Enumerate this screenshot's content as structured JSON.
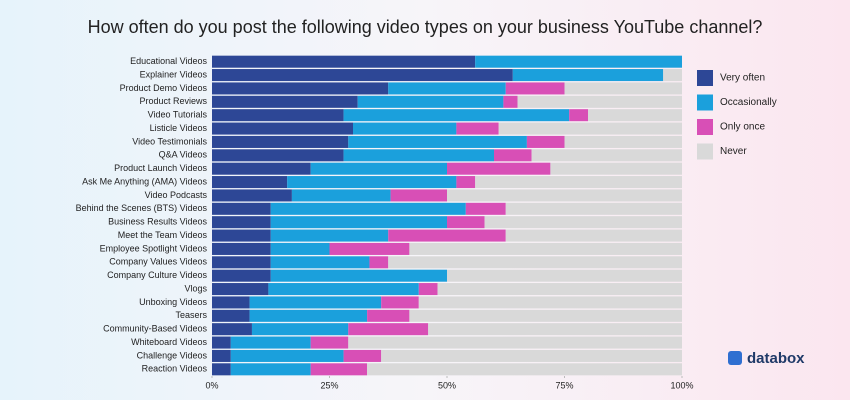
{
  "chart_data": {
    "type": "stacked-bar-horizontal",
    "title": "How often do you post the following video types on your business YouTube channel?",
    "brand": "databox",
    "categories": [
      "Educational Videos",
      "Explainer Videos",
      "Product Demo Videos",
      "Product Reviews",
      "Video Tutorials",
      "Listicle Videos",
      "Video Testimonials",
      "Q&A Videos",
      "Product Launch Videos",
      "Ask Me Anything (AMA) Videos",
      "Video Podcasts",
      "Behind the Scenes (BTS) Videos",
      "Business Results Videos",
      "Meet the Team Videos",
      "Employee Spotlight Videos",
      "Company Values Videos",
      "Company Culture Videos",
      "Vlogs",
      "Unboxing Videos",
      "Teasers",
      "Community-Based Videos",
      "Whiteboard Videos",
      "Challenge Videos",
      "Reaction Videos"
    ],
    "series": [
      {
        "name": "Very often",
        "color": "#2d4796",
        "values": [
          56,
          64,
          37.5,
          31,
          28,
          30,
          29,
          28,
          21,
          16,
          17,
          12.5,
          12.5,
          12.5,
          12.5,
          12.5,
          12.5,
          12,
          8,
          8,
          8.5,
          4,
          4,
          4
        ]
      },
      {
        "name": "Occasionally",
        "color": "#1ba0dc",
        "values": [
          44,
          32,
          25,
          31,
          48,
          22,
          38,
          32,
          29,
          36,
          21,
          41.5,
          37.5,
          25,
          12.5,
          21,
          37.5,
          32,
          28,
          25,
          20.5,
          17,
          24,
          17
        ]
      },
      {
        "name": "Only once",
        "color": "#d84fb6",
        "values": [
          0,
          0,
          12.5,
          3,
          4,
          9,
          8,
          8,
          22,
          4,
          12,
          8.5,
          8,
          25,
          17,
          4,
          0,
          4,
          8,
          9,
          17,
          8,
          8,
          12
        ]
      },
      {
        "name": "Never",
        "color": "#d9d9d9",
        "values": [
          0,
          4,
          25,
          35,
          20,
          39,
          25,
          32,
          28,
          44,
          50,
          37.5,
          42,
          37.5,
          58,
          62.5,
          50,
          52,
          56,
          58,
          54,
          71,
          64,
          67
        ]
      }
    ],
    "xlim": [
      0,
      100
    ],
    "xticks": [
      {
        "value": 0,
        "label": "0%"
      },
      {
        "value": 25,
        "label": "25%"
      },
      {
        "value": 50,
        "label": "50%"
      },
      {
        "value": 75,
        "label": "75%"
      },
      {
        "value": 100,
        "label": "100%"
      }
    ],
    "legend": "right"
  }
}
